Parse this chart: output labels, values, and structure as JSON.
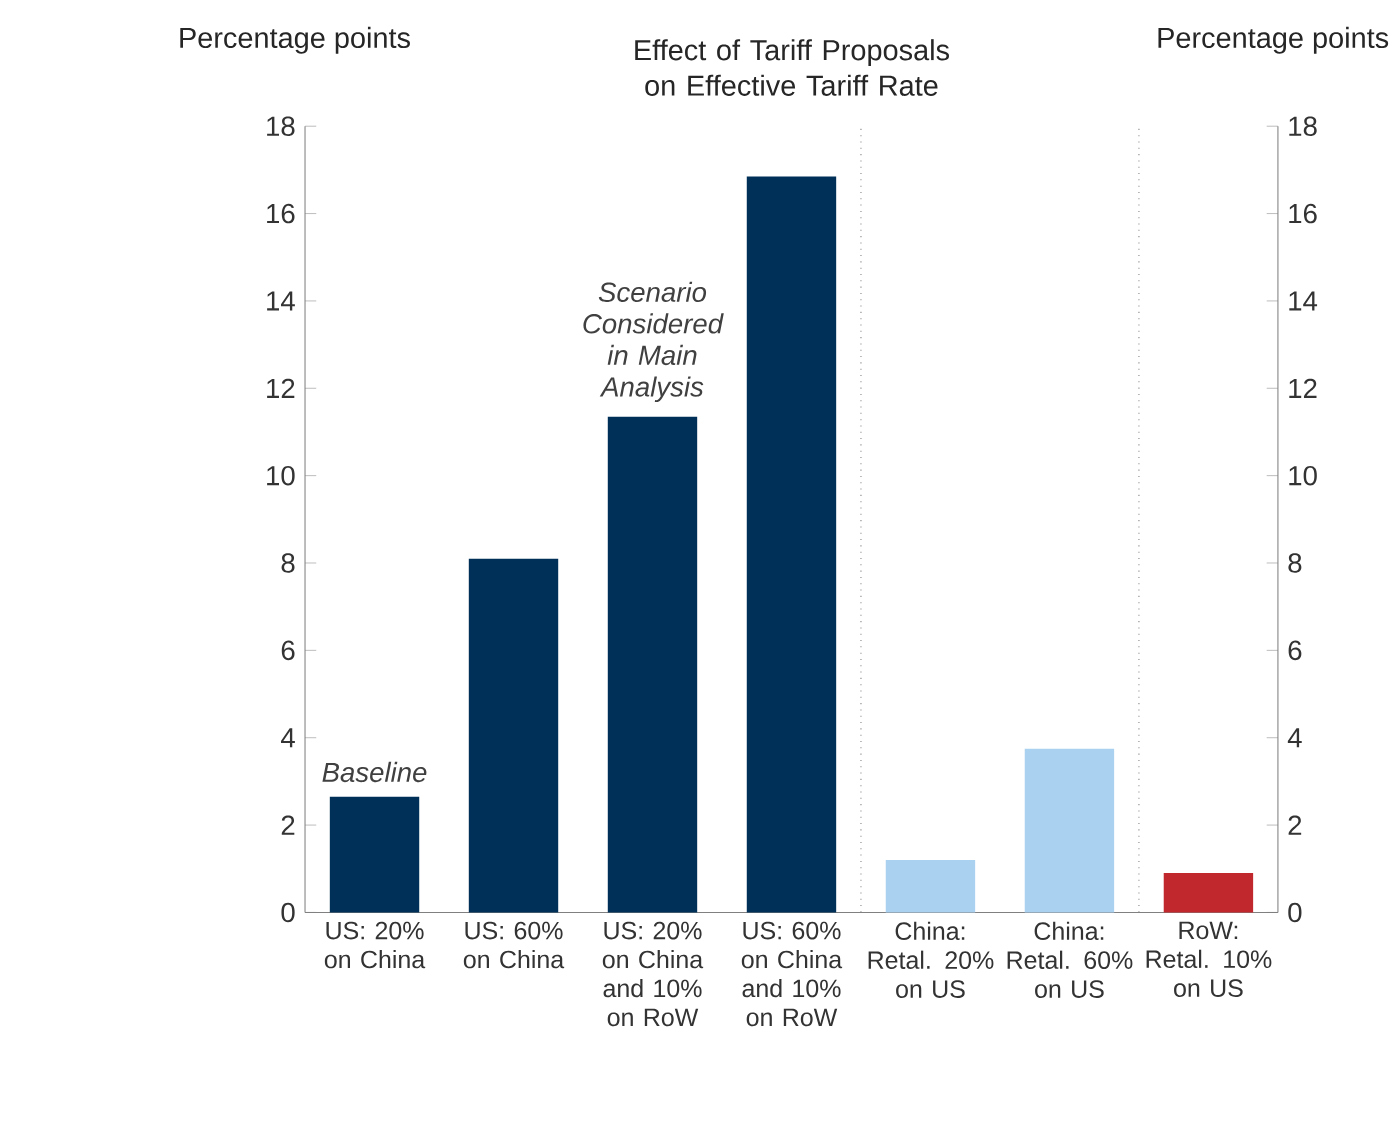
{
  "chart_data": {
    "type": "bar",
    "title": "Effect of Tariff Proposals on Effective Tariff Rate",
    "ylabel": "Percentage points",
    "y2label": "Percentage points",
    "categories": [
      "US: 20% on China",
      "US: 60% on China",
      "US: 20% on China and 10% on RoW",
      "US: 60% on China and 10% on RoW",
      "China: Retal. 20% on US",
      "China: Retal. 60% on US",
      "RoW: Retal. 10% on US"
    ],
    "values": [
      2.65,
      8.1,
      11.35,
      16.85,
      1.2,
      3.75,
      0.9
    ],
    "colors": [
      "#003057",
      "#003057",
      "#003057",
      "#003057",
      "#aad1ef",
      "#aad1ef",
      "#c0282d"
    ],
    "ylim": [
      0,
      18
    ],
    "yticks": [
      0,
      2,
      4,
      6,
      8,
      10,
      12,
      14,
      16,
      18
    ],
    "y2lim": [
      0,
      18
    ],
    "y2ticks": [
      0,
      2,
      4,
      6,
      8,
      10,
      12,
      14,
      16,
      18
    ],
    "annotations": [
      {
        "text": "Baseline",
        "x": "US: 20% on China",
        "y": 2.65
      },
      {
        "text": "Scenario Considered in Main Analysis",
        "x": "US: 20% on China and 10% on RoW",
        "y": 11.35
      }
    ]
  }
}
